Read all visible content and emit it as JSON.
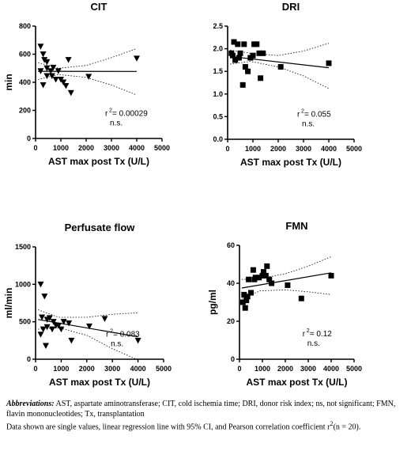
{
  "chart_data": [
    {
      "type": "scatter",
      "title": "CIT",
      "xlabel": "AST max post Tx (U/L)",
      "ylabel": "min",
      "xlim": [
        0,
        5000
      ],
      "ylim": [
        0,
        800
      ],
      "xticks": [
        "0",
        "1000",
        "2000",
        "3000",
        "4000",
        "5000"
      ],
      "yticks": [
        "0",
        "200",
        "400",
        "600",
        "800"
      ],
      "marker": "triangle-down",
      "points": [
        {
          "x": 200,
          "y": 655
        },
        {
          "x": 300,
          "y": 600
        },
        {
          "x": 200,
          "y": 480
        },
        {
          "x": 300,
          "y": 380
        },
        {
          "x": 350,
          "y": 560
        },
        {
          "x": 450,
          "y": 545
        },
        {
          "x": 450,
          "y": 500
        },
        {
          "x": 450,
          "y": 445
        },
        {
          "x": 600,
          "y": 480
        },
        {
          "x": 650,
          "y": 445
        },
        {
          "x": 700,
          "y": 505
        },
        {
          "x": 800,
          "y": 420
        },
        {
          "x": 900,
          "y": 480
        },
        {
          "x": 1000,
          "y": 420
        },
        {
          "x": 1100,
          "y": 400
        },
        {
          "x": 1200,
          "y": 375
        },
        {
          "x": 1300,
          "y": 560
        },
        {
          "x": 1400,
          "y": 325
        },
        {
          "x": 2100,
          "y": 440
        },
        {
          "x": 4000,
          "y": 570
        }
      ],
      "regression": {
        "x": [
          100,
          4000
        ],
        "y": [
          478,
          477
        ]
      },
      "ci_upper": [
        [
          100,
          540
        ],
        [
          900,
          500
        ],
        [
          2000,
          520
        ],
        [
          3000,
          575
        ],
        [
          4000,
          640
        ]
      ],
      "ci_lower": [
        [
          100,
          420
        ],
        [
          900,
          455
        ],
        [
          2000,
          435
        ],
        [
          3000,
          380
        ],
        [
          4000,
          310
        ]
      ],
      "r2_label": "r",
      "r2_sup": "2",
      "r2_value": "= 0.00029",
      "significance": "n.s."
    },
    {
      "type": "scatter",
      "title": "DRI",
      "xlabel": "AST max post Tx (U/L)",
      "ylabel": "",
      "xlim": [
        0,
        5000
      ],
      "ylim": [
        0,
        2.5
      ],
      "xticks": [
        "0",
        "1000",
        "2000",
        "3000",
        "4000",
        "5000"
      ],
      "yticks": [
        "0.0",
        "0.5",
        "1.0",
        "1.5",
        "2.0",
        "2.5"
      ],
      "marker": "square",
      "points": [
        {
          "x": 150,
          "y": 1.9
        },
        {
          "x": 200,
          "y": 1.85
        },
        {
          "x": 250,
          "y": 2.15
        },
        {
          "x": 300,
          "y": 1.75
        },
        {
          "x": 400,
          "y": 2.1
        },
        {
          "x": 450,
          "y": 1.8
        },
        {
          "x": 500,
          "y": 1.9
        },
        {
          "x": 600,
          "y": 1.2
        },
        {
          "x": 650,
          "y": 2.1
        },
        {
          "x": 700,
          "y": 1.6
        },
        {
          "x": 800,
          "y": 1.5
        },
        {
          "x": 900,
          "y": 1.8
        },
        {
          "x": 1000,
          "y": 1.85
        },
        {
          "x": 1050,
          "y": 2.1
        },
        {
          "x": 1150,
          "y": 2.1
        },
        {
          "x": 1250,
          "y": 1.9
        },
        {
          "x": 1300,
          "y": 1.35
        },
        {
          "x": 1400,
          "y": 1.9
        },
        {
          "x": 2100,
          "y": 1.6
        },
        {
          "x": 4000,
          "y": 1.68
        }
      ],
      "regression": {
        "x": [
          100,
          4000
        ],
        "y": [
          1.83,
          1.58
        ]
      },
      "ci_upper": [
        [
          100,
          1.97
        ],
        [
          900,
          1.9
        ],
        [
          2000,
          1.85
        ],
        [
          3000,
          1.95
        ],
        [
          4000,
          2.12
        ]
      ],
      "ci_lower": [
        [
          100,
          1.66
        ],
        [
          900,
          1.72
        ],
        [
          2000,
          1.6
        ],
        [
          3000,
          1.4
        ],
        [
          4000,
          1.12
        ]
      ],
      "r2_label": "r",
      "r2_sup": "2",
      "r2_value": "= 0.055",
      "significance": "n.s."
    },
    {
      "type": "scatter",
      "title": "Perfusate flow",
      "xlabel": "AST max post Tx (U/L)",
      "ylabel": "ml/min",
      "xlim": [
        0,
        5000
      ],
      "ylim": [
        0,
        1500
      ],
      "xticks": [
        "0",
        "1000",
        "2000",
        "3000",
        "4000",
        "5000"
      ],
      "yticks": [
        "0",
        "500",
        "1000",
        "1500"
      ],
      "marker": "triangle-down",
      "points": [
        {
          "x": 200,
          "y": 1000
        },
        {
          "x": 350,
          "y": 840
        },
        {
          "x": 250,
          "y": 560
        },
        {
          "x": 200,
          "y": 330
        },
        {
          "x": 300,
          "y": 400
        },
        {
          "x": 400,
          "y": 180
        },
        {
          "x": 450,
          "y": 530
        },
        {
          "x": 450,
          "y": 430
        },
        {
          "x": 550,
          "y": 550
        },
        {
          "x": 650,
          "y": 400
        },
        {
          "x": 700,
          "y": 500
        },
        {
          "x": 800,
          "y": 450
        },
        {
          "x": 900,
          "y": 450
        },
        {
          "x": 1000,
          "y": 400
        },
        {
          "x": 1100,
          "y": 500
        },
        {
          "x": 1300,
          "y": 480
        },
        {
          "x": 1400,
          "y": 250
        },
        {
          "x": 2100,
          "y": 440
        },
        {
          "x": 2700,
          "y": 540
        },
        {
          "x": 4000,
          "y": 250
        }
      ],
      "regression": {
        "x": [
          100,
          4000
        ],
        "y": [
          530,
          300
        ]
      },
      "ci_upper": [
        [
          100,
          660
        ],
        [
          900,
          560
        ],
        [
          2000,
          560
        ],
        [
          3000,
          600
        ],
        [
          4000,
          620
        ]
      ],
      "ci_lower": [
        [
          100,
          400
        ],
        [
          900,
          420
        ],
        [
          2000,
          320
        ],
        [
          3000,
          140
        ],
        [
          4000,
          -10
        ]
      ],
      "r2_label": "r",
      "r2_sup": "2",
      "r2_value": "= 0.083",
      "significance": "n.s."
    },
    {
      "type": "scatter",
      "title": "FMN",
      "xlabel": "AST max post Tx (U/L)",
      "ylabel": "pg/ml",
      "xlim": [
        0,
        5000
      ],
      "ylim": [
        0,
        60
      ],
      "xticks": [
        "0",
        "1000",
        "2000",
        "3000",
        "4000",
        "5000"
      ],
      "yticks": [
        "0",
        "20",
        "40",
        "60"
      ],
      "marker": "square",
      "points": [
        {
          "x": 150,
          "y": 30
        },
        {
          "x": 200,
          "y": 34
        },
        {
          "x": 250,
          "y": 27
        },
        {
          "x": 300,
          "y": 31
        },
        {
          "x": 350,
          "y": 33
        },
        {
          "x": 400,
          "y": 42
        },
        {
          "x": 500,
          "y": 35
        },
        {
          "x": 600,
          "y": 47
        },
        {
          "x": 650,
          "y": 42
        },
        {
          "x": 700,
          "y": 43
        },
        {
          "x": 850,
          "y": 43
        },
        {
          "x": 1000,
          "y": 44
        },
        {
          "x": 1050,
          "y": 46
        },
        {
          "x": 1150,
          "y": 44
        },
        {
          "x": 1200,
          "y": 49
        },
        {
          "x": 1300,
          "y": 42
        },
        {
          "x": 1400,
          "y": 40
        },
        {
          "x": 2100,
          "y": 39
        },
        {
          "x": 2700,
          "y": 32
        },
        {
          "x": 4000,
          "y": 44
        }
      ],
      "regression": {
        "x": [
          100,
          4000
        ],
        "y": [
          37.5,
          45.5
        ]
      },
      "ci_upper": [
        [
          100,
          42
        ],
        [
          900,
          42.5
        ],
        [
          2000,
          45
        ],
        [
          3000,
          49
        ],
        [
          4000,
          54
        ]
      ],
      "ci_lower": [
        [
          100,
          32
        ],
        [
          900,
          36
        ],
        [
          2000,
          36.5
        ],
        [
          3000,
          35.5
        ],
        [
          4000,
          34
        ]
      ],
      "r2_label": "r",
      "r2_sup": "2",
      "r2_value": "= 0.12",
      "significance": "n.s."
    }
  ],
  "caption": {
    "abbrev_label": "Abbreviations:",
    "abbrev_text": " AST, aspartate aminotransferase; CIT, cold ischemia time; DRI, donor risk index; ns, not significant; FMN, flavin mononucleotides; Tx, transplantation",
    "note_text": "Data shown are single values, linear regression line with 95% CI, and Pearson correlation coefficient r",
    "note_sup": "2",
    "note_tail": "(n = 20)."
  }
}
